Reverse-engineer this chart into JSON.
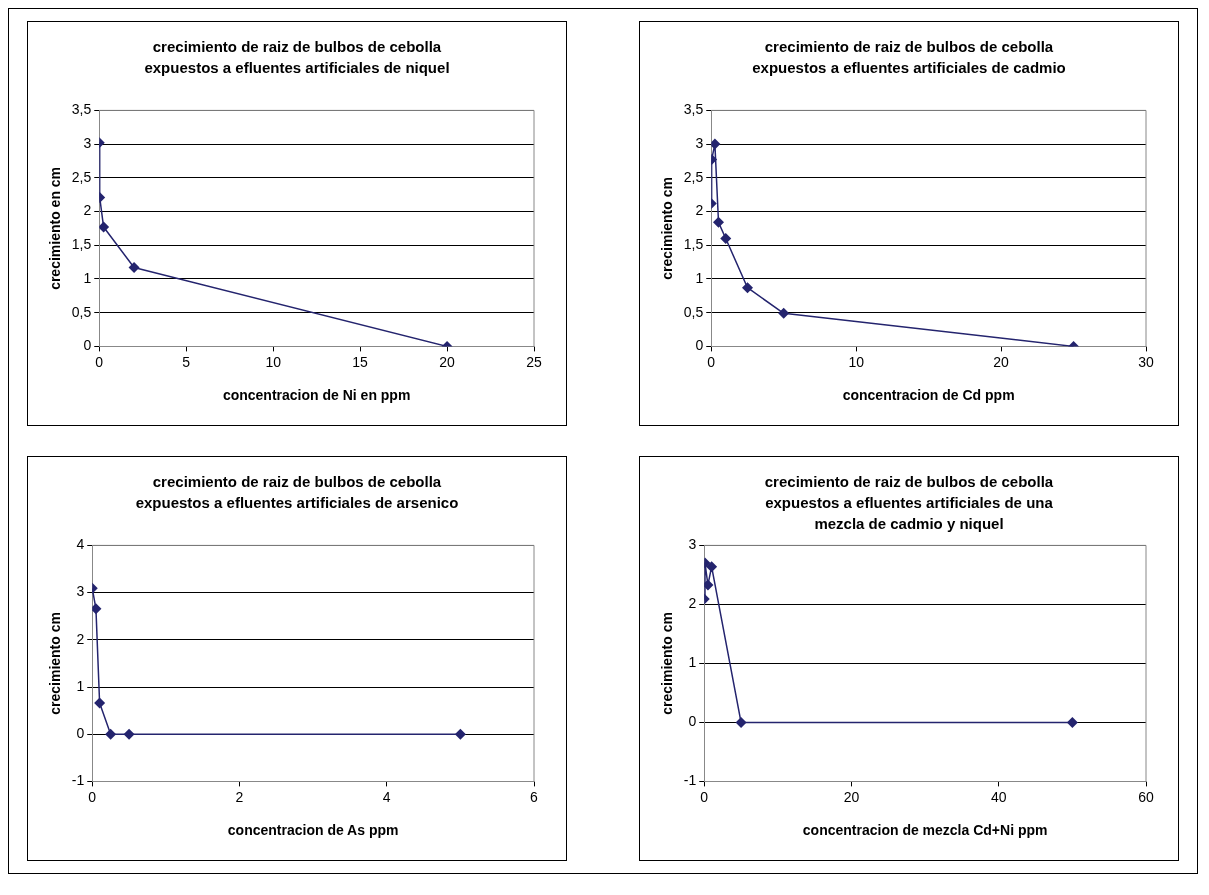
{
  "chart_data": [
    {
      "type": "line",
      "title": "crecimiento de raiz de bulbos de cebolla expuestos a efluentes artificiales de niquel",
      "xlabel": "concentracion de Ni en ppm",
      "ylabel": "crecimiento en cm",
      "marker": "diamond",
      "grid": "y",
      "legend": false,
      "series": [
        {
          "color": "#24246e",
          "x": [
            0,
            0.025,
            0.25,
            2,
            20
          ],
          "values": [
            3.02,
            2.21,
            1.77,
            1.17,
            0
          ]
        }
      ],
      "xlim": [
        0,
        25
      ],
      "xticks": [
        0,
        5,
        10,
        15,
        20,
        25
      ],
      "ylim": [
        0,
        3.5
      ],
      "yticks": [
        0,
        {
          "value": 0.5,
          "label": "0,5"
        },
        1,
        {
          "value": 1.5,
          "label": "1,5"
        },
        2,
        {
          "value": 2.5,
          "label": "2,5"
        },
        3,
        {
          "value": 3.5,
          "label": "3,5"
        }
      ]
    },
    {
      "type": "line",
      "title": "crecimiento de raiz de bulbos de cebolla expuestos a efluentes artificiales de cadmio",
      "xlabel": "concentracion de Cd ppm",
      "ylabel": "crecimiento cm",
      "marker": "diamond",
      "grid": "y",
      "legend": false,
      "series": [
        {
          "color": "#24246e",
          "x": [
            0,
            0.025,
            0.25,
            0.5,
            1,
            2.5,
            5,
            25
          ],
          "values": [
            2.12,
            2.77,
            3.0,
            1.84,
            1.6,
            0.87,
            0.49,
            0
          ]
        }
      ],
      "xlim": [
        0,
        30
      ],
      "xticks": [
        0,
        10,
        20,
        30
      ],
      "ylim": [
        0,
        3.5
      ],
      "yticks": [
        0,
        {
          "value": 0.5,
          "label": "0,5"
        },
        1,
        {
          "value": 1.5,
          "label": "1,5"
        },
        2,
        {
          "value": 2.5,
          "label": "2,5"
        },
        3,
        {
          "value": 3.5,
          "label": "3,5"
        }
      ]
    },
    {
      "type": "line",
      "title": "crecimiento de raiz de bulbos de cebolla expuestos a efluentes artificiales de arsenico",
      "xlabel": "concentracion de As ppm",
      "ylabel": "crecimiento cm",
      "marker": "diamond",
      "grid": "y",
      "legend": false,
      "series": [
        {
          "color": "#24246e",
          "x": [
            0,
            0.05,
            0.1,
            0.25,
            0.5,
            5
          ],
          "values": [
            3.09,
            2.66,
            0.66,
            0,
            0,
            0
          ]
        }
      ],
      "xlim": [
        0,
        6
      ],
      "xticks": [
        0,
        2,
        4,
        6
      ],
      "ylim": [
        -1,
        4
      ],
      "yticks": [
        -1,
        0,
        1,
        2,
        3,
        4
      ]
    },
    {
      "type": "line",
      "title": "crecimiento de raiz de bulbos de cebolla expuestos a efluentes artificiales de una mezcla de cadmio y niquel",
      "xlabel": "concentracion de mezcla Cd+Ni ppm",
      "ylabel": "crecimiento cm",
      "marker": "diamond",
      "grid": "y",
      "legend": false,
      "series": [
        {
          "color": "#24246e",
          "x": [
            0,
            0.1,
            0.5,
            1,
            5,
            50
          ],
          "values": [
            2.09,
            2.7,
            2.33,
            2.64,
            0,
            0
          ]
        }
      ],
      "xlim": [
        0,
        60
      ],
      "xticks": [
        0,
        20,
        40,
        60
      ],
      "ylim": [
        -1,
        3
      ],
      "yticks": [
        -1,
        0,
        1,
        2,
        3
      ]
    }
  ]
}
